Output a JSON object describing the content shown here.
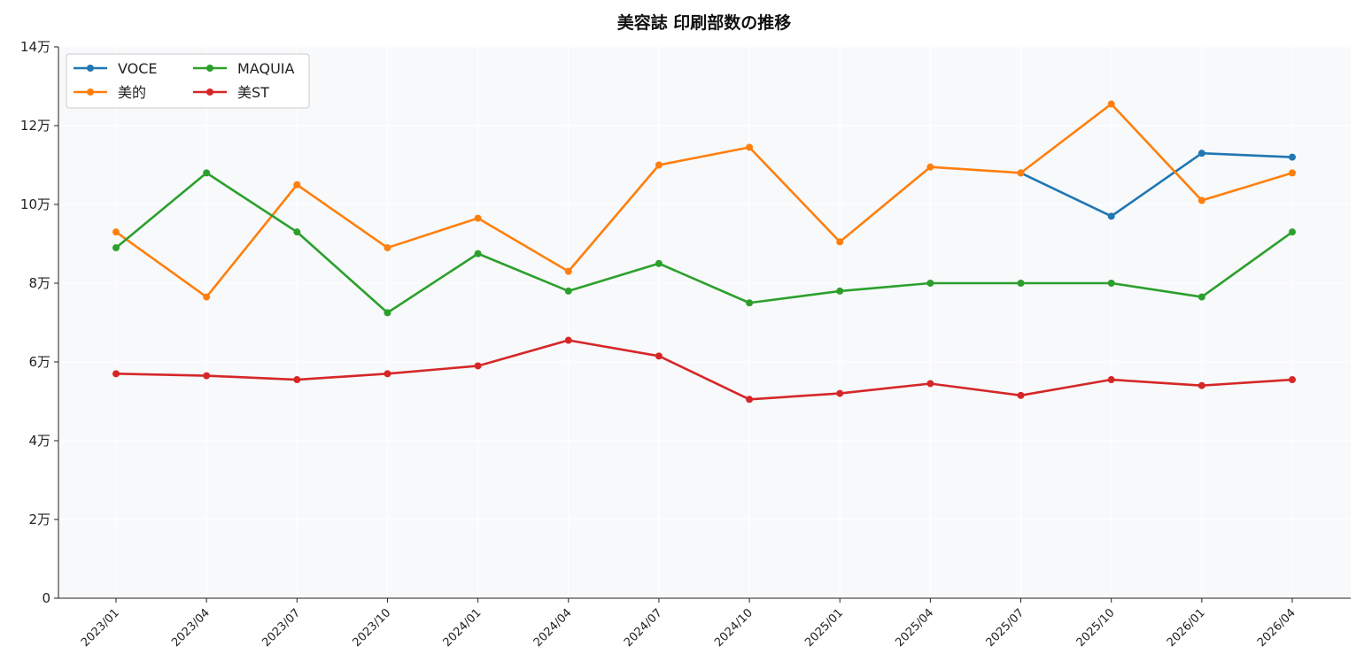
{
  "chart_data": {
    "type": "line",
    "title": "美容誌 印刷部数の推移",
    "xlabel": "",
    "ylabel": "",
    "ylim": [
      0,
      140000
    ],
    "y_ticks": [
      {
        "value": 0,
        "label": "0"
      },
      {
        "value": 20000,
        "label": "2万"
      },
      {
        "value": 40000,
        "label": "4万"
      },
      {
        "value": 60000,
        "label": "6万"
      },
      {
        "value": 80000,
        "label": "8万"
      },
      {
        "value": 100000,
        "label": "10万"
      },
      {
        "value": 120000,
        "label": "12万"
      },
      {
        "value": 140000,
        "label": "14万"
      }
    ],
    "categories": [
      "2023/01",
      "2023/04",
      "2023/07",
      "2023/10",
      "2024/01",
      "2024/04",
      "2024/07",
      "2024/10",
      "2025/01",
      "2025/04",
      "2025/07",
      "2025/10",
      "2026/01",
      "2026/04"
    ],
    "grid": true,
    "legend_position": "top-left",
    "legend_columns": 2,
    "series": [
      {
        "name": "VOCE",
        "color": "#1f77b4",
        "values": [
          null,
          null,
          null,
          null,
          null,
          null,
          null,
          null,
          null,
          null,
          108000,
          97000,
          113000,
          112000
        ]
      },
      {
        "name": "美的",
        "color": "#ff7f0e",
        "values": [
          93000,
          76500,
          105000,
          89000,
          96500,
          83000,
          110000,
          114500,
          90500,
          109500,
          108000,
          125500,
          101000,
          108000
        ]
      },
      {
        "name": "MAQUIA",
        "color": "#2ca02c",
        "values": [
          89000,
          108000,
          93000,
          72500,
          87500,
          78000,
          85000,
          75000,
          78000,
          80000,
          80000,
          80000,
          76500,
          93000
        ]
      },
      {
        "name": "美ST",
        "color": "#d62728",
        "values": [
          57000,
          56500,
          55500,
          57000,
          59000,
          65500,
          61500,
          50500,
          52000,
          54500,
          51500,
          55500,
          54000,
          55500
        ]
      }
    ]
  }
}
